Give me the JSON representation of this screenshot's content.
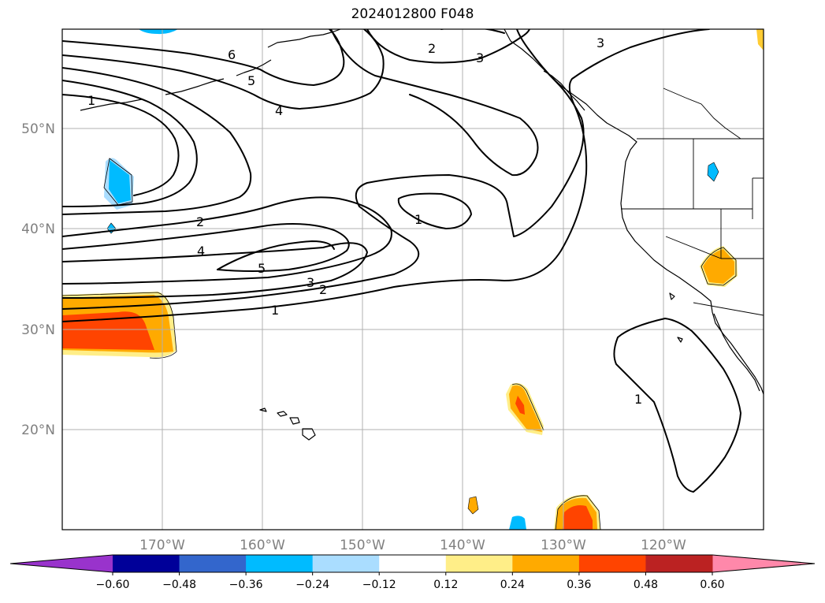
{
  "title": "2024012800 F048",
  "map": {
    "lon_ticks": [
      "170°W",
      "160°W",
      "150°W",
      "140°W",
      "130°W",
      "120°W"
    ],
    "lat_ticks": [
      "50°N",
      "40°N",
      "30°N",
      "20°N"
    ],
    "contour_labels": [
      "6",
      "5",
      "4",
      "1",
      "2",
      "4",
      "5",
      "3",
      "2",
      "1",
      "2",
      "3",
      "3",
      "1",
      "1"
    ]
  },
  "colorbar": {
    "ticks": [
      "−0.60",
      "−0.48",
      "−0.36",
      "−0.24",
      "−0.12",
      "0.12",
      "0.24",
      "0.36",
      "0.48",
      "0.60"
    ],
    "colors": [
      "#9933cc",
      "#000099",
      "#3366cc",
      "#00bbff",
      "#aaddff",
      "#ffffff",
      "#ffee88",
      "#ffaa00",
      "#ff4400",
      "#bb2222",
      "#ff88aa"
    ]
  },
  "colors": {
    "grid": "#b0b0b0",
    "tick_text": "#808080",
    "positive_1": "#ffee88",
    "positive_2": "#ffaa00",
    "positive_3": "#ff4400",
    "negative_1": "#aaddff",
    "negative_2": "#00bbff"
  }
}
